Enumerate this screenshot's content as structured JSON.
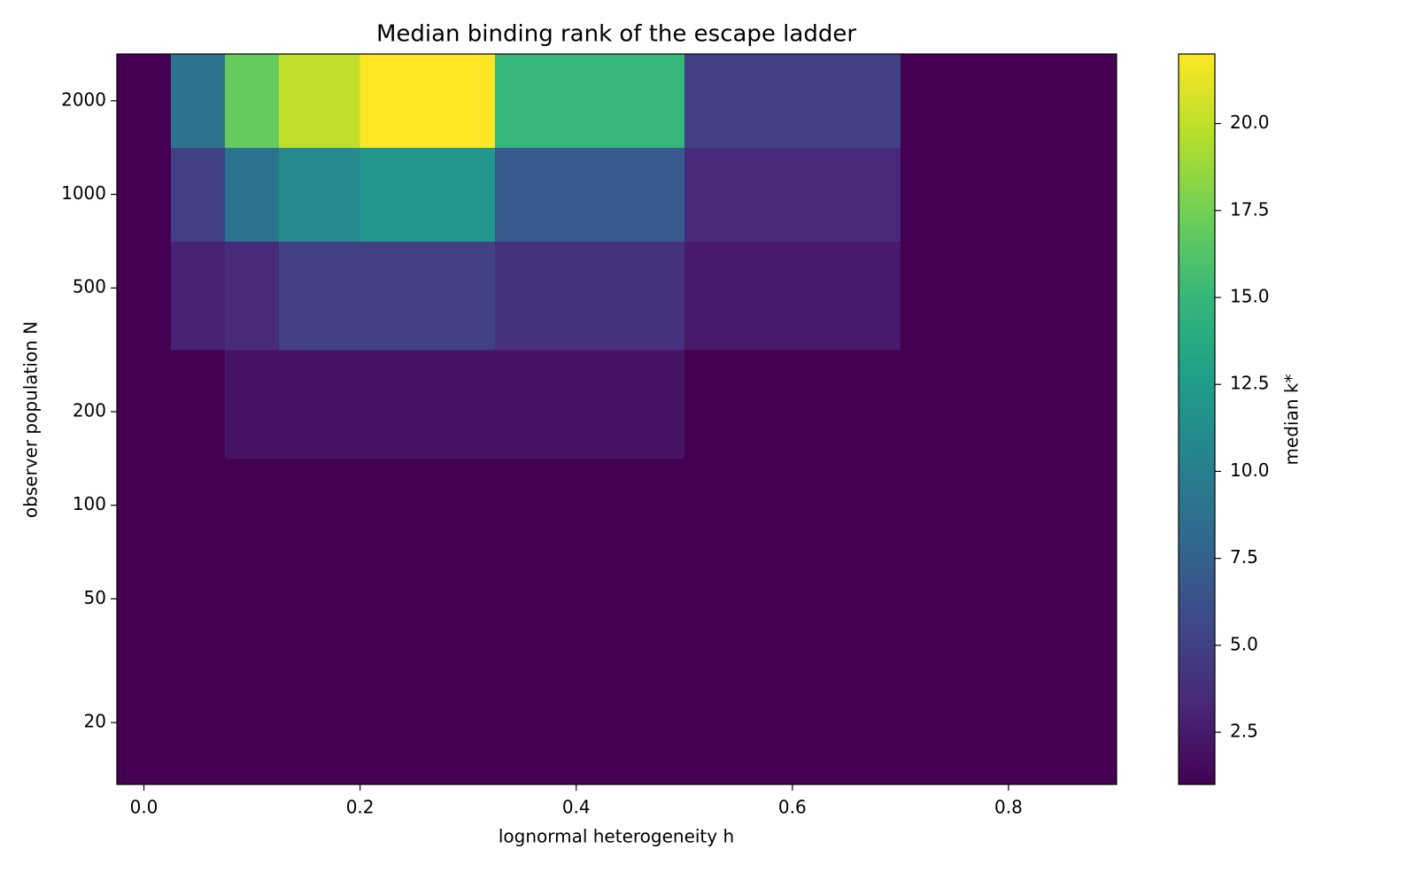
{
  "chart_data": {
    "type": "heatmap",
    "title": "Median binding rank of the escape ladder",
    "xlabel": "lognormal heterogeneity h",
    "ylabel": "observer population N",
    "x": [
      0,
      0.05,
      0.1,
      0.15,
      0.25,
      0.4,
      0.6,
      0.8
    ],
    "y": [
      20,
      50,
      100,
      200,
      500,
      1000,
      2000
    ],
    "z": [
      [
        1,
        1,
        1,
        1,
        1,
        1,
        1,
        1
      ],
      [
        1,
        1,
        1,
        1,
        1,
        1,
        1,
        1
      ],
      [
        1,
        1,
        1,
        1,
        1,
        1,
        1,
        1
      ],
      [
        1,
        1,
        2,
        2,
        2,
        2,
        1,
        1
      ],
      [
        1,
        3,
        3.5,
        5,
        5,
        4,
        2.5,
        1
      ],
      [
        1,
        5,
        9,
        11,
        12,
        7,
        3.5,
        1
      ],
      [
        1,
        9,
        17,
        20,
        22,
        15,
        5,
        1
      ]
    ],
    "xlim": [
      -0.025,
      0.9
    ],
    "ylim": [
      12.65,
      2828
    ],
    "yscale": "log",
    "xticks": [
      {
        "value": 0,
        "label": "0.0"
      },
      0.2,
      0.4,
      0.6,
      0.8
    ],
    "yticks": [
      20,
      50,
      100,
      200,
      500,
      1000,
      2000
    ],
    "colormap": "viridis",
    "clim": [
      1,
      22
    ],
    "colorbar_label": "median k*",
    "cticks": [
      2.5,
      {
        "value": 5,
        "label": "5.0"
      },
      7.5,
      {
        "value": 10,
        "label": "10.0"
      },
      12.5,
      {
        "value": 15,
        "label": "15.0"
      },
      17.5,
      {
        "value": 20,
        "label": "20.0"
      }
    ]
  }
}
